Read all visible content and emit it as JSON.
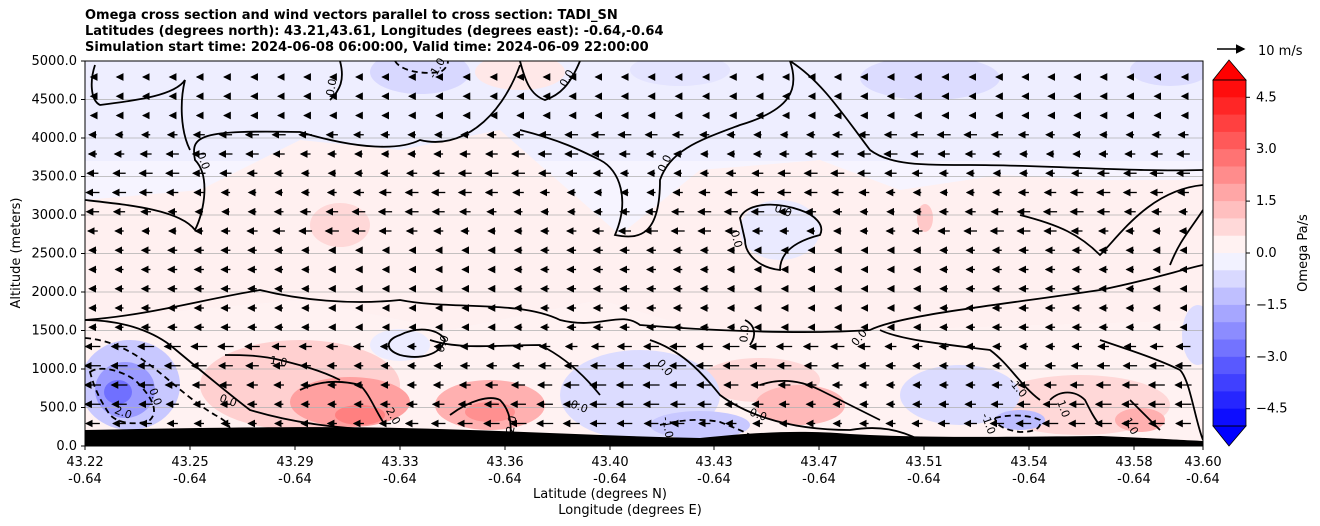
{
  "chart_data": {
    "type": "heatmap",
    "title_lines": [
      "Omega cross section and wind vectors parallel to cross section: TADI_SN",
      "Latitudes (degrees north): 43.21,43.61, Longitudes (degrees east): -0.64,-0.64",
      "Simulation start time: 2024-06-08 06:00:00, Valid time: 2024-06-09 22:00:00"
    ],
    "xlabel": "Latitude (degrees N)",
    "xlabel2": "Longitude (degrees E)",
    "ylabel": "Altitude (meters)",
    "xlim": [
      43.22,
      43.6
    ],
    "ylim": [
      0,
      5000
    ],
    "x_ticks": [
      {
        "lat": "43.22",
        "lon": "-0.64"
      },
      {
        "lat": "43.25",
        "lon": "-0.64"
      },
      {
        "lat": "43.29",
        "lon": "-0.64"
      },
      {
        "lat": "43.33",
        "lon": "-0.64"
      },
      {
        "lat": "43.36",
        "lon": "-0.64"
      },
      {
        "lat": "43.40",
        "lon": "-0.64"
      },
      {
        "lat": "43.43",
        "lon": "-0.64"
      },
      {
        "lat": "43.47",
        "lon": "-0.64"
      },
      {
        "lat": "43.51",
        "lon": "-0.64"
      },
      {
        "lat": "43.54",
        "lon": "-0.64"
      },
      {
        "lat": "43.58",
        "lon": "-0.64"
      },
      {
        "lat": "43.60",
        "lon": "-0.64"
      }
    ],
    "y_ticks": [
      "0.0",
      "500.0",
      "1000.0",
      "1500.0",
      "2000.0",
      "2500.0",
      "3000.0",
      "3500.0",
      "4000.0",
      "4500.0",
      "5000.0"
    ],
    "grid": "horizontal",
    "colorbar": {
      "label": "Omega Pa/s",
      "range": [
        -5.0,
        5.0
      ],
      "extend": "both",
      "ticks": [
        "4.5",
        "3.0",
        "1.5",
        "0.0",
        "−1.5",
        "−3.0",
        "−4.5"
      ],
      "colormap": "bwr"
    },
    "quiver_key": {
      "label": "10 m/s"
    },
    "contour_levels": [
      -2.0,
      -1.0,
      0.0,
      1.0,
      2.0
    ],
    "contour_labels": [
      "0.0",
      "-1.0",
      "0.0",
      "0.0",
      "0.0",
      "0.0",
      "0.0",
      "0.0",
      "0.0",
      "0.0",
      "1.0",
      "0.0",
      "2.0",
      "2.0",
      "2.0",
      "0.0",
      "0.0",
      "-1.0",
      "0.0",
      "0.0",
      "-1.0",
      "1.0",
      "1.0"
    ],
    "wind_direction": "predominantly toward decreasing latitude (southward) aloft",
    "terrain": "black filled terrain along the bottom, approximately 100-200 m"
  },
  "colors": {
    "terrain": "#000000",
    "grid": "#b0b0b0",
    "positive": "#ff0000",
    "negative": "#0000ff"
  }
}
